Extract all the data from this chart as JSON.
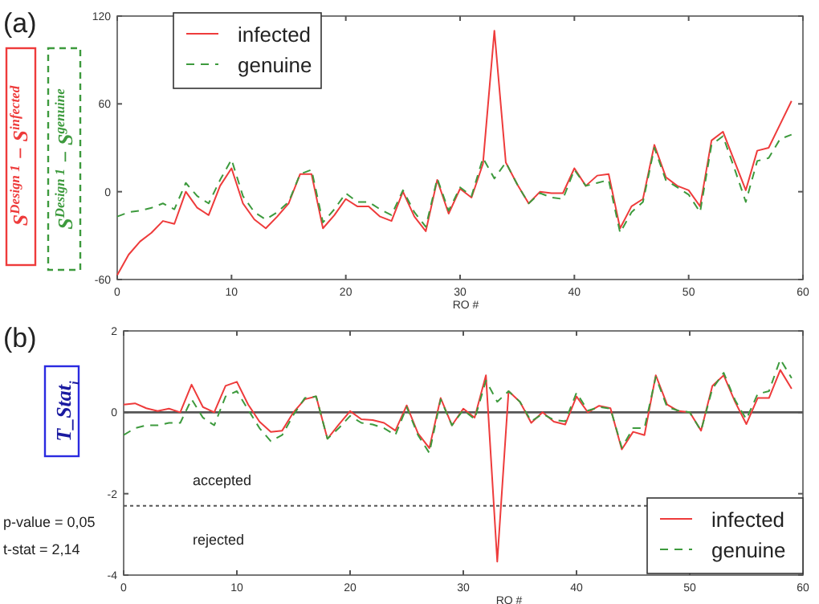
{
  "chart_data": [
    {
      "type": "line",
      "title": "(a)",
      "xlabel": "RO #",
      "ylabel": "S$^{Design 1}$ − S$^{infected}$",
      "annotations": [
        "S$^{Design 1}$ − S$^{genuine}$"
      ],
      "x": [
        0,
        1,
        2,
        3,
        4,
        5,
        6,
        7,
        8,
        9,
        10,
        11,
        12,
        13,
        14,
        15,
        16,
        17,
        18,
        19,
        20,
        21,
        22,
        23,
        24,
        25,
        26,
        27,
        28,
        29,
        30,
        31,
        32,
        33,
        34,
        35,
        36,
        37,
        38,
        39,
        40,
        41,
        42,
        43,
        44,
        45,
        46,
        47,
        48,
        49,
        50,
        51,
        52,
        53,
        54,
        55,
        56,
        57,
        58,
        59
      ],
      "series": [
        {
          "name": "infected",
          "color": "#ee3b3b",
          "line_style": "solid",
          "values": [
            -57,
            -43,
            -34,
            -28,
            -20,
            -22,
            0,
            -11,
            -16,
            4,
            16,
            -8,
            -19,
            -25,
            -17,
            -8,
            12,
            12,
            -25,
            -16,
            -5,
            -10,
            -10,
            -17,
            -20,
            0,
            -17,
            -27,
            8,
            -15,
            2,
            -4,
            19,
            110,
            20,
            5,
            -8,
            0,
            -1,
            -1,
            16,
            4,
            11,
            12,
            -25,
            -10,
            -5,
            32,
            10,
            4,
            1,
            -10,
            35,
            41,
            21,
            1,
            28,
            30,
            46,
            62
          ]
        },
        {
          "name": "genuine",
          "color": "#3d9a3d",
          "line_style": "dashed",
          "values": [
            -17,
            -14,
            -13,
            -11,
            -8,
            -12,
            6,
            -3,
            -8,
            8,
            22,
            -3,
            -14,
            -19,
            -14,
            -7,
            12,
            15,
            -21,
            -12,
            -1,
            -7,
            -7,
            -12,
            -16,
            1,
            -14,
            -24,
            9,
            -13,
            3,
            -3,
            23,
            9,
            20,
            5,
            -8,
            -1,
            -4,
            -5,
            15,
            4,
            6,
            8,
            -28,
            -14,
            -7,
            30,
            8,
            3,
            -2,
            -14,
            32,
            38,
            16,
            -7,
            21,
            23,
            36,
            39
          ]
        }
      ],
      "xlim": [
        0,
        60
      ],
      "xticks": [
        0,
        10,
        20,
        30,
        40,
        50,
        60
      ],
      "ylim": [
        -60,
        120
      ],
      "yticks": [
        -60,
        0,
        60,
        120
      ],
      "grid": false,
      "legend": "top left"
    },
    {
      "type": "line",
      "title": "(b)",
      "xlabel": "RO #",
      "ylabel": "T_Stat$_{i}$",
      "annotations": [
        "accepted",
        "rejected",
        "p-value = 0,05",
        "t-stat = 2,14"
      ],
      "x": [
        0,
        1,
        2,
        3,
        4,
        5,
        6,
        7,
        8,
        9,
        10,
        11,
        12,
        13,
        14,
        15,
        16,
        17,
        18,
        19,
        20,
        21,
        22,
        23,
        24,
        25,
        26,
        27,
        28,
        29,
        30,
        31,
        32,
        33,
        34,
        35,
        36,
        37,
        38,
        39,
        40,
        41,
        42,
        43,
        44,
        45,
        46,
        47,
        48,
        49,
        50,
        51,
        52,
        53,
        54,
        55,
        56,
        57,
        58,
        59
      ],
      "series": [
        {
          "name": "infected",
          "color": "#ee3b3b",
          "line_style": "solid",
          "values": [
            0.19,
            0.22,
            0.1,
            0.03,
            0.09,
            0,
            0.68,
            0.13,
            0,
            0.65,
            0.75,
            0.19,
            -0.23,
            -0.48,
            -0.45,
            0,
            0.32,
            0.39,
            -0.65,
            -0.3,
            0.03,
            -0.17,
            -0.19,
            -0.26,
            -0.45,
            0.17,
            -0.52,
            -0.88,
            0.35,
            -0.32,
            0.09,
            -0.13,
            0.91,
            -3.67,
            0.52,
            0.26,
            -0.26,
            0,
            -0.23,
            -0.3,
            0.39,
            0,
            0.16,
            0.1,
            -0.91,
            -0.48,
            -0.56,
            0.91,
            0.19,
            0.03,
            0,
            -0.45,
            0.65,
            0.91,
            0.26,
            -0.29,
            0.35,
            0.35,
            1.04,
            0.58
          ]
        },
        {
          "name": "genuine",
          "color": "#3d9a3d",
          "line_style": "dashed",
          "values": [
            -0.56,
            -0.39,
            -0.32,
            -0.32,
            -0.26,
            -0.26,
            0.32,
            -0.13,
            -0.32,
            0.39,
            0.52,
            0.06,
            -0.39,
            -0.71,
            -0.56,
            -0.06,
            0.35,
            0.39,
            -0.65,
            -0.39,
            -0.09,
            -0.26,
            -0.3,
            -0.39,
            -0.56,
            0.13,
            -0.56,
            -1.0,
            0.32,
            -0.32,
            0.06,
            -0.17,
            0.78,
            0.26,
            0.52,
            0.26,
            -0.22,
            -0.04,
            -0.19,
            -0.22,
            0.48,
            0.04,
            0.13,
            0.09,
            -0.87,
            -0.39,
            -0.39,
            0.87,
            0.13,
            0.04,
            0,
            -0.45,
            0.58,
            0.97,
            0.3,
            -0.17,
            0.45,
            0.52,
            1.3,
            0.84
          ]
        }
      ],
      "ref_lines": [
        {
          "axis": "y",
          "value": 0,
          "color": "#555555",
          "line_style": "solid"
        },
        {
          "axis": "y",
          "value": -2.3,
          "color": "#555555",
          "line_style": "dotted"
        }
      ],
      "xlim": [
        0,
        60
      ],
      "xticks": [
        0,
        10,
        20,
        30,
        40,
        50,
        60
      ],
      "ylim": [
        -4,
        2
      ],
      "yticks": [
        -4,
        -2,
        0,
        2
      ],
      "grid": false,
      "legend": "bottom right"
    }
  ]
}
